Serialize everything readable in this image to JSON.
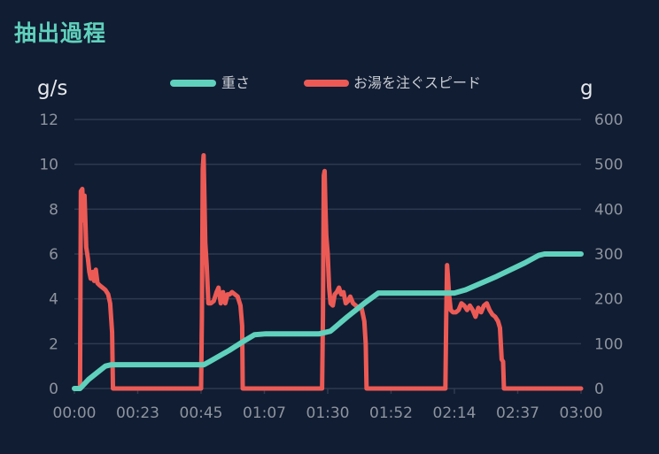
{
  "page": {
    "title": "抽出過程"
  },
  "chart_data": {
    "type": "line",
    "title": "",
    "grid": true,
    "legend_placement": "top-center",
    "colors": {
      "background": "#111d33",
      "title": "#5fd1bc",
      "grid": "#2e3a4f",
      "tick_text": "#8d949e",
      "unit_text": "#e6e8eb",
      "legend_text": "#c9cdd3"
    },
    "x_axis": {
      "unit": "seconds",
      "range": [
        0,
        180
      ],
      "tick_values": [
        0,
        22.5,
        45,
        67.5,
        90,
        112.5,
        135,
        157.5,
        180
      ],
      "tick_labels": [
        "00:00",
        "00:23",
        "00:45",
        "01:07",
        "01:30",
        "01:52",
        "02:14",
        "02:37",
        "03:00"
      ]
    },
    "y_left": {
      "label": "g/s",
      "range": [
        0,
        12
      ],
      "tick_values": [
        0,
        2,
        4,
        6,
        8,
        10,
        12
      ],
      "tick_labels": [
        "0",
        "2",
        "4",
        "6",
        "8",
        "10",
        "12"
      ]
    },
    "y_right": {
      "label": "g",
      "range": [
        0,
        600
      ],
      "tick_values": [
        0,
        100,
        200,
        300,
        400,
        500,
        600
      ],
      "tick_labels": [
        "0",
        "100",
        "200",
        "300",
        "400",
        "500",
        "600"
      ]
    },
    "series": [
      {
        "name": "重さ",
        "axis": "right",
        "color": "#5fd1bc",
        "points": [
          [
            0,
            0
          ],
          [
            2,
            0
          ],
          [
            5,
            20
          ],
          [
            8,
            35
          ],
          [
            11,
            50
          ],
          [
            13,
            53
          ],
          [
            15,
            53
          ],
          [
            30,
            53
          ],
          [
            40,
            53
          ],
          [
            46,
            53
          ],
          [
            48,
            60
          ],
          [
            55,
            85
          ],
          [
            60,
            105
          ],
          [
            64,
            120
          ],
          [
            68,
            122
          ],
          [
            80,
            122
          ],
          [
            87,
            122
          ],
          [
            91,
            128
          ],
          [
            97,
            160
          ],
          [
            103,
            190
          ],
          [
            108,
            213
          ],
          [
            112,
            213
          ],
          [
            130,
            213
          ],
          [
            135,
            213
          ],
          [
            139,
            220
          ],
          [
            150,
            250
          ],
          [
            160,
            280
          ],
          [
            165,
            297
          ],
          [
            167,
            300
          ],
          [
            180,
            300
          ]
        ]
      },
      {
        "name": "お湯を注ぐスピード",
        "axis": "left",
        "color": "#ec5a55",
        "points": [
          [
            0,
            0
          ],
          [
            2,
            0
          ],
          [
            2.3,
            8.8
          ],
          [
            2.8,
            8.9
          ],
          [
            3.3,
            7.5
          ],
          [
            3.6,
            8.6
          ],
          [
            4.2,
            6.3
          ],
          [
            4.8,
            5.8
          ],
          [
            5.3,
            5.2
          ],
          [
            5.8,
            4.9
          ],
          [
            6.5,
            5.2
          ],
          [
            7.0,
            4.8
          ],
          [
            7.6,
            5.3
          ],
          [
            8.2,
            4.7
          ],
          [
            9.0,
            4.6
          ],
          [
            10.0,
            4.5
          ],
          [
            11.0,
            4.4
          ],
          [
            12.0,
            4.2
          ],
          [
            12.7,
            3.8
          ],
          [
            13.4,
            2.5
          ],
          [
            13.7,
            0
          ],
          [
            45.0,
            0
          ],
          [
            45.3,
            3.2
          ],
          [
            45.6,
            9.8
          ],
          [
            45.9,
            10.4
          ],
          [
            46.2,
            8.5
          ],
          [
            46.5,
            6.5
          ],
          [
            47.0,
            5.5
          ],
          [
            47.6,
            3.8
          ],
          [
            48.5,
            3.8
          ],
          [
            49.5,
            3.9
          ],
          [
            50.5,
            4.3
          ],
          [
            51.2,
            4.5
          ],
          [
            52.0,
            3.8
          ],
          [
            52.8,
            4.3
          ],
          [
            53.6,
            3.8
          ],
          [
            54.4,
            4.2
          ],
          [
            55.2,
            4.2
          ],
          [
            56.0,
            4.3
          ],
          [
            57.0,
            4.2
          ],
          [
            58.0,
            4.1
          ],
          [
            59.0,
            3.7
          ],
          [
            59.6,
            2.8
          ],
          [
            59.8,
            0
          ],
          [
            88.0,
            0
          ],
          [
            88.3,
            3.2
          ],
          [
            88.6,
            9.5
          ],
          [
            88.9,
            9.7
          ],
          [
            89.2,
            8.0
          ],
          [
            89.5,
            6.8
          ],
          [
            90.0,
            6.0
          ],
          [
            90.5,
            4.5
          ],
          [
            91.0,
            3.8
          ],
          [
            91.8,
            3.7
          ],
          [
            92.5,
            4.2
          ],
          [
            93.2,
            4.3
          ],
          [
            94.0,
            4.5
          ],
          [
            94.8,
            4.2
          ],
          [
            95.6,
            4.3
          ],
          [
            96.4,
            3.8
          ],
          [
            97.2,
            3.9
          ],
          [
            98.0,
            4.1
          ],
          [
            99.0,
            3.8
          ],
          [
            100.0,
            3.7
          ],
          [
            101.0,
            3.6
          ],
          [
            102.0,
            3.6
          ],
          [
            103.0,
            3.0
          ],
          [
            103.5,
            2.0
          ],
          [
            103.8,
            0
          ],
          [
            131.8,
            0
          ],
          [
            132.1,
            3.2
          ],
          [
            132.4,
            5.5
          ],
          [
            132.7,
            5.0
          ],
          [
            133.1,
            4.2
          ],
          [
            133.7,
            3.5
          ],
          [
            134.5,
            3.4
          ],
          [
            135.5,
            3.4
          ],
          [
            136.5,
            3.5
          ],
          [
            137.5,
            3.8
          ],
          [
            138.5,
            3.7
          ],
          [
            139.5,
            3.5
          ],
          [
            140.5,
            3.7
          ],
          [
            141.5,
            3.5
          ],
          [
            142.5,
            3.2
          ],
          [
            143.5,
            3.6
          ],
          [
            144.5,
            3.4
          ],
          [
            145.5,
            3.7
          ],
          [
            146.5,
            3.8
          ],
          [
            147.5,
            3.5
          ],
          [
            148.5,
            3.3
          ],
          [
            149.5,
            3.2
          ],
          [
            150.5,
            3.0
          ],
          [
            151.2,
            2.7
          ],
          [
            151.8,
            1.3
          ],
          [
            152.3,
            1.2
          ],
          [
            152.6,
            0
          ],
          [
            180,
            0
          ]
        ]
      }
    ]
  }
}
